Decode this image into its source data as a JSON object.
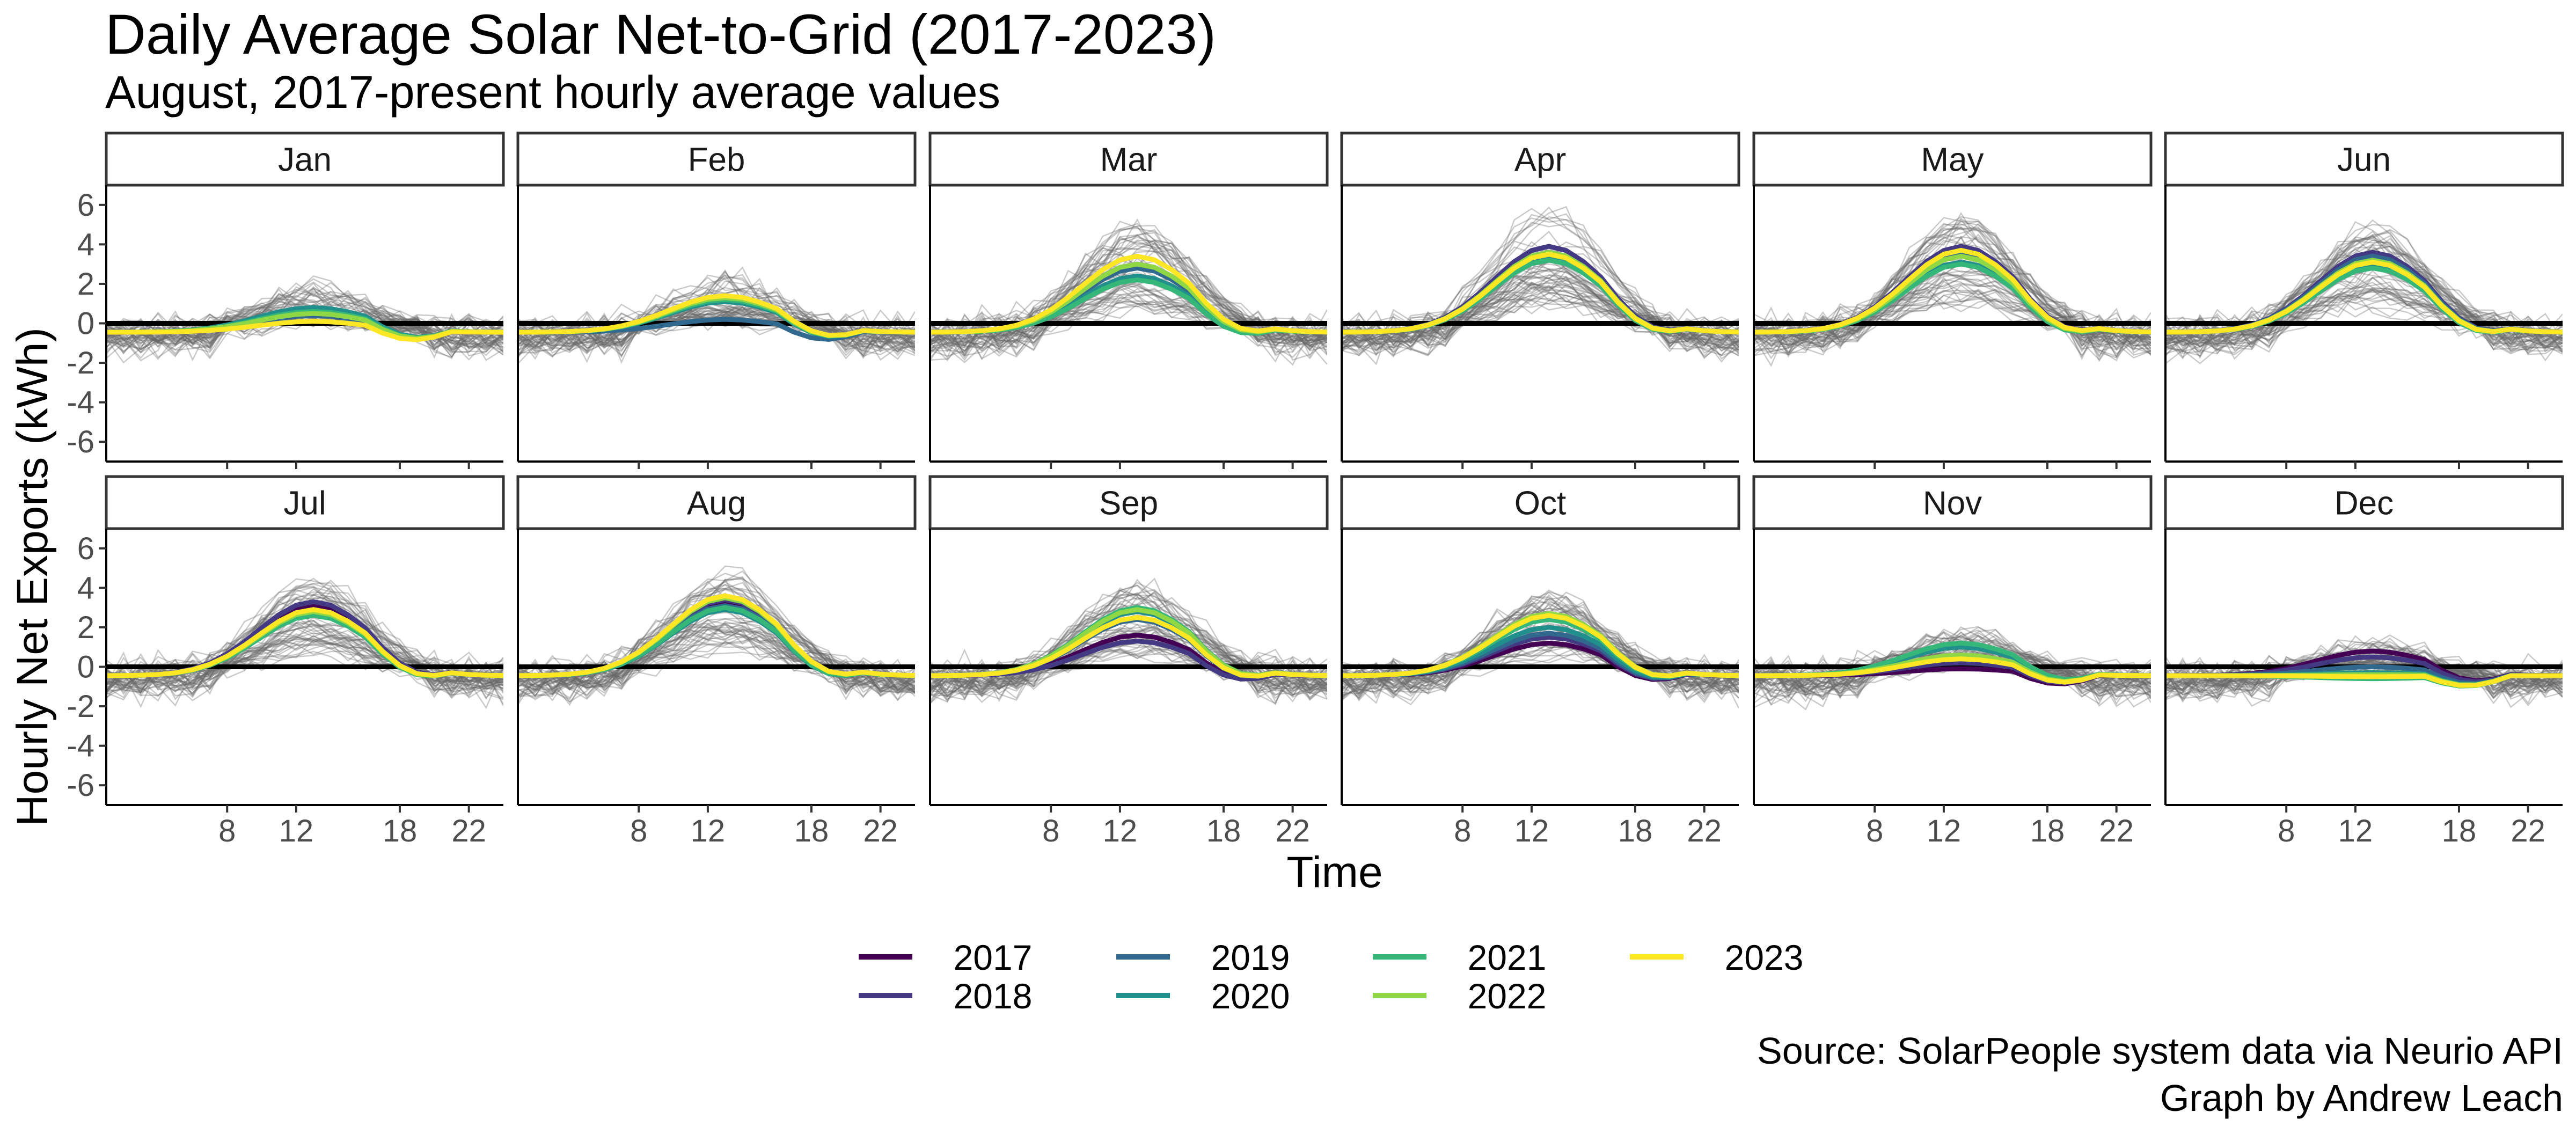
{
  "title": "Daily Average Solar Net-to-Grid (2017-2023)",
  "subtitle": "August, 2017-present hourly average values",
  "caption": {
    "line1": "Source: SolarPeople system data via Neurio API",
    "line2": "Graph by Andrew Leach"
  },
  "colors": {
    "2017": "#440154",
    "2018": "#443A83",
    "2019": "#31688E",
    "2020": "#21908C",
    "2021": "#35B779",
    "2022": "#8FD744",
    "2023": "#FDE725",
    "background_days": "#666666",
    "zero_line": "#000000"
  },
  "chart_data": {
    "type": "line",
    "facet": "month",
    "xlabel": "Time",
    "ylabel": "Hourly Net Exports (kWh)",
    "x_ticks": [
      8,
      12,
      18,
      22
    ],
    "y_ticks": [
      -6,
      -4,
      -2,
      0,
      2,
      4,
      6
    ],
    "xlim": [
      1,
      24
    ],
    "ylim": [
      -7,
      7
    ],
    "legend": {
      "position": "bottom",
      "entries": [
        "2017",
        "2018",
        "2019",
        "2020",
        "2021",
        "2022",
        "2023"
      ]
    },
    "panels": [
      {
        "label": "Jan",
        "peak": 0.8,
        "spread": 2.6,
        "series": {
          "2019": 0.4,
          "2020": 0.8,
          "2021": 0.6,
          "2022": 0.5,
          "2023": 0.1
        }
      },
      {
        "label": "Feb",
        "peak": 1.0,
        "spread": 3.2,
        "series": {
          "2019": 0.2,
          "2020": 1.1,
          "2021": 1.2,
          "2022": 1.3,
          "2023": 1.4
        }
      },
      {
        "label": "Mar",
        "peak": 3.2,
        "spread": 2.6,
        "series": {
          "2018": 3.0,
          "2019": 2.8,
          "2020": 2.4,
          "2021": 2.2,
          "2022": 3.0,
          "2023": 3.4
        }
      },
      {
        "label": "Apr",
        "peak": 3.7,
        "spread": 2.4,
        "series": {
          "2018": 3.9,
          "2019": 3.6,
          "2020": 3.4,
          "2021": 3.2,
          "2022": 3.6,
          "2023": 3.5
        }
      },
      {
        "label": "May",
        "peak": 3.6,
        "spread": 2.0,
        "series": {
          "2018": 3.9,
          "2019": 3.5,
          "2020": 3.1,
          "2021": 3.0,
          "2022": 3.4,
          "2023": 3.7
        }
      },
      {
        "label": "Jun",
        "peak": 3.2,
        "spread": 2.0,
        "series": {
          "2018": 3.6,
          "2019": 3.4,
          "2020": 2.9,
          "2021": 2.8,
          "2022": 3.2,
          "2023": 3.1
        }
      },
      {
        "label": "Jul",
        "peak": 3.0,
        "spread": 2.0,
        "series": {
          "2017": 3.1,
          "2018": 3.3,
          "2019": 2.9,
          "2020": 2.7,
          "2021": 2.6,
          "2022": 2.8,
          "2023": 2.9
        }
      },
      {
        "label": "Aug",
        "peak": 3.3,
        "spread": 1.8,
        "series": {
          "2017": 3.2,
          "2018": 3.4,
          "2019": 3.1,
          "2020": 2.9,
          "2021": 3.0,
          "2022": 3.5,
          "2023": 3.6
        }
      },
      {
        "label": "Sep",
        "peak": 2.6,
        "spread": 2.4,
        "series": {
          "2017": 1.6,
          "2018": 1.3,
          "2019": 2.4,
          "2020": 2.8,
          "2021": 3.0,
          "2022": 2.9,
          "2023": 2.5
        }
      },
      {
        "label": "Oct",
        "peak": 2.2,
        "spread": 2.2,
        "series": {
          "2017": 1.2,
          "2018": 1.5,
          "2019": 1.7,
          "2020": 2.0,
          "2021": 2.4,
          "2022": 2.7,
          "2023": 2.6
        }
      },
      {
        "label": "Nov",
        "peak": 0.8,
        "spread": 2.4,
        "series": {
          "2017": -0.1,
          "2018": 0.2,
          "2019": 0.5,
          "2020": 1.0,
          "2021": 1.2,
          "2022": 0.6,
          "2023": 0.4
        }
      },
      {
        "label": "Dec",
        "peak": 0.3,
        "spread": 2.4,
        "series": {
          "2017": 0.8,
          "2018": 0.5,
          "2019": 0.0,
          "2020": -0.3,
          "2021": -0.6,
          "2022": -0.4,
          "2023": -0.5
        }
      }
    ]
  }
}
